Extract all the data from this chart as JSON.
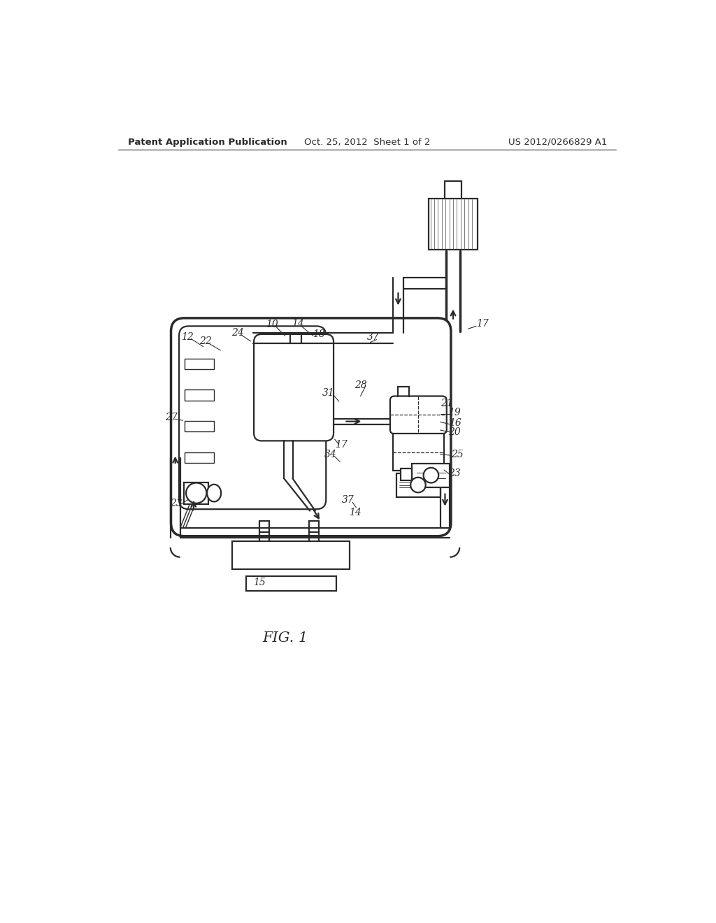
{
  "bg_color": "#ffffff",
  "line_color": "#2a2a2a",
  "header_left": "Patent Application Publication",
  "header_center": "Oct. 25, 2012  Sheet 1 of 2",
  "header_right": "US 2012/0266829 A1",
  "fig_title": "FIG. 1",
  "lw_thick": 2.5,
  "lw_main": 1.6,
  "lw_thin": 1.0,
  "label_fs": 10
}
